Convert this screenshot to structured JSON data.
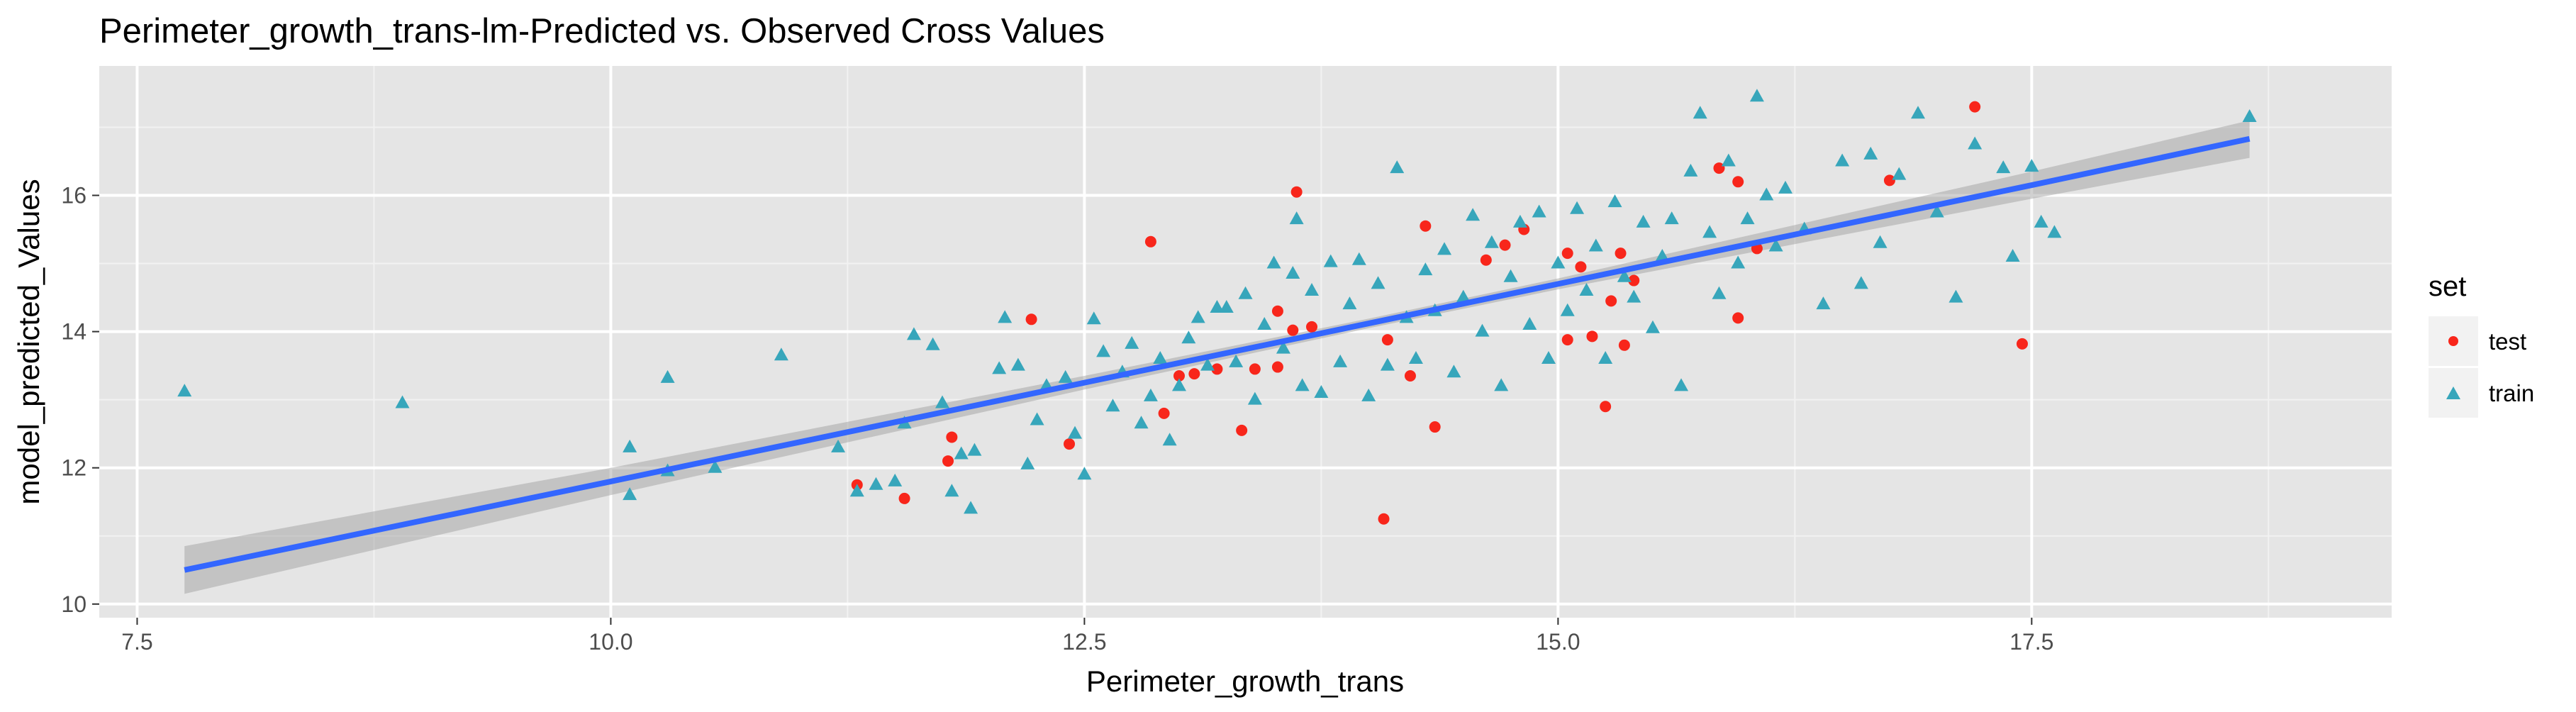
{
  "chart_data": {
    "type": "scatter",
    "title": "Perimeter_growth_trans-lm-Predicted vs. Observed Cross Values",
    "xlabel": "Perimeter_growth_trans",
    "ylabel": "model_predicted_Values",
    "xlim": [
      7.3,
      19.4
    ],
    "ylim": [
      9.8,
      17.9
    ],
    "x_ticks": [
      7.5,
      10.0,
      12.5,
      15.0,
      17.5
    ],
    "x_tick_labels": [
      "7.5",
      "10.0",
      "12.5",
      "15.0",
      "17.5"
    ],
    "y_ticks": [
      10,
      12,
      14,
      16
    ],
    "y_tick_labels": [
      "10",
      "12",
      "14",
      "16"
    ],
    "grid": true,
    "background": "#e5e5e5",
    "legend": {
      "title": "set",
      "position": "right"
    },
    "fit": {
      "method": "lm",
      "color": "#3366ff",
      "band_color": "#999999",
      "points": [
        {
          "x": 7.75,
          "y": 10.5,
          "lower": 10.15,
          "upper": 10.85
        },
        {
          "x": 10.0,
          "y": 11.8,
          "lower": 11.6,
          "upper": 12.0
        },
        {
          "x": 12.5,
          "y": 13.25,
          "lower": 13.15,
          "upper": 13.35
        },
        {
          "x": 14.0,
          "y": 14.12,
          "lower": 14.05,
          "upper": 14.19
        },
        {
          "x": 15.0,
          "y": 14.7,
          "lower": 14.62,
          "upper": 14.78
        },
        {
          "x": 17.5,
          "y": 16.15,
          "lower": 15.95,
          "upper": 16.35
        },
        {
          "x": 18.65,
          "y": 16.83,
          "lower": 16.55,
          "upper": 17.1
        }
      ]
    },
    "series": [
      {
        "name": "test",
        "shape": "circle",
        "color": "#f8261b",
        "points": [
          {
            "x": 11.3,
            "y": 11.75
          },
          {
            "x": 11.55,
            "y": 11.55
          },
          {
            "x": 11.78,
            "y": 12.1
          },
          {
            "x": 11.8,
            "y": 12.45
          },
          {
            "x": 12.22,
            "y": 14.18
          },
          {
            "x": 12.42,
            "y": 12.35
          },
          {
            "x": 12.85,
            "y": 15.32
          },
          {
            "x": 12.92,
            "y": 12.8
          },
          {
            "x": 13.0,
            "y": 13.35
          },
          {
            "x": 13.08,
            "y": 13.38
          },
          {
            "x": 13.2,
            "y": 13.45
          },
          {
            "x": 13.33,
            "y": 12.55
          },
          {
            "x": 13.4,
            "y": 13.45
          },
          {
            "x": 13.52,
            "y": 14.3
          },
          {
            "x": 13.52,
            "y": 13.48
          },
          {
            "x": 13.6,
            "y": 14.02
          },
          {
            "x": 13.62,
            "y": 16.05
          },
          {
            "x": 13.7,
            "y": 14.07
          },
          {
            "x": 14.1,
            "y": 13.88
          },
          {
            "x": 14.08,
            "y": 11.25
          },
          {
            "x": 14.22,
            "y": 13.35
          },
          {
            "x": 14.3,
            "y": 15.55
          },
          {
            "x": 14.35,
            "y": 12.6
          },
          {
            "x": 14.62,
            "y": 15.05
          },
          {
            "x": 14.72,
            "y": 15.27
          },
          {
            "x": 14.82,
            "y": 15.5
          },
          {
            "x": 15.05,
            "y": 13.88
          },
          {
            "x": 15.05,
            "y": 15.15
          },
          {
            "x": 15.12,
            "y": 14.95
          },
          {
            "x": 15.18,
            "y": 13.93
          },
          {
            "x": 15.25,
            "y": 12.9
          },
          {
            "x": 15.28,
            "y": 14.45
          },
          {
            "x": 15.33,
            "y": 15.15
          },
          {
            "x": 15.35,
            "y": 13.8
          },
          {
            "x": 15.4,
            "y": 14.75
          },
          {
            "x": 15.85,
            "y": 16.4
          },
          {
            "x": 15.95,
            "y": 16.2
          },
          {
            "x": 15.95,
            "y": 14.2
          },
          {
            "x": 16.05,
            "y": 15.22
          },
          {
            "x": 16.75,
            "y": 16.22
          },
          {
            "x": 17.2,
            "y": 17.3
          },
          {
            "x": 17.45,
            "y": 13.82
          }
        ]
      },
      {
        "name": "train",
        "shape": "triangle",
        "color": "#37a6bb",
        "points": [
          {
            "x": 7.75,
            "y": 13.12
          },
          {
            "x": 8.9,
            "y": 12.95
          },
          {
            "x": 10.1,
            "y": 11.6
          },
          {
            "x": 10.1,
            "y": 12.3
          },
          {
            "x": 10.3,
            "y": 13.32
          },
          {
            "x": 10.3,
            "y": 11.95
          },
          {
            "x": 10.55,
            "y": 12.0
          },
          {
            "x": 10.9,
            "y": 13.65
          },
          {
            "x": 11.2,
            "y": 12.3
          },
          {
            "x": 11.3,
            "y": 11.65
          },
          {
            "x": 11.4,
            "y": 11.75
          },
          {
            "x": 11.5,
            "y": 11.8
          },
          {
            "x": 11.55,
            "y": 12.65
          },
          {
            "x": 11.6,
            "y": 13.95
          },
          {
            "x": 11.7,
            "y": 13.8
          },
          {
            "x": 11.75,
            "y": 12.95
          },
          {
            "x": 11.8,
            "y": 11.65
          },
          {
            "x": 11.85,
            "y": 12.2
          },
          {
            "x": 11.9,
            "y": 11.4
          },
          {
            "x": 11.92,
            "y": 12.25
          },
          {
            "x": 12.05,
            "y": 13.45
          },
          {
            "x": 12.08,
            "y": 14.2
          },
          {
            "x": 12.15,
            "y": 13.5
          },
          {
            "x": 12.2,
            "y": 12.05
          },
          {
            "x": 12.25,
            "y": 12.7
          },
          {
            "x": 12.3,
            "y": 13.2
          },
          {
            "x": 12.4,
            "y": 13.32
          },
          {
            "x": 12.45,
            "y": 12.5
          },
          {
            "x": 12.5,
            "y": 11.9
          },
          {
            "x": 12.55,
            "y": 14.18
          },
          {
            "x": 12.6,
            "y": 13.7
          },
          {
            "x": 12.65,
            "y": 12.9
          },
          {
            "x": 12.7,
            "y": 13.4
          },
          {
            "x": 12.75,
            "y": 13.82
          },
          {
            "x": 12.8,
            "y": 12.65
          },
          {
            "x": 12.85,
            "y": 13.05
          },
          {
            "x": 12.9,
            "y": 13.6
          },
          {
            "x": 12.95,
            "y": 12.4
          },
          {
            "x": 13.0,
            "y": 13.2
          },
          {
            "x": 13.05,
            "y": 13.9
          },
          {
            "x": 13.1,
            "y": 14.2
          },
          {
            "x": 13.15,
            "y": 13.5
          },
          {
            "x": 13.2,
            "y": 14.35
          },
          {
            "x": 13.25,
            "y": 14.35
          },
          {
            "x": 13.3,
            "y": 13.55
          },
          {
            "x": 13.35,
            "y": 14.55
          },
          {
            "x": 13.4,
            "y": 13.0
          },
          {
            "x": 13.45,
            "y": 14.1
          },
          {
            "x": 13.5,
            "y": 15.0
          },
          {
            "x": 13.55,
            "y": 13.75
          },
          {
            "x": 13.6,
            "y": 14.85
          },
          {
            "x": 13.62,
            "y": 15.65
          },
          {
            "x": 13.65,
            "y": 13.2
          },
          {
            "x": 13.7,
            "y": 14.6
          },
          {
            "x": 13.75,
            "y": 13.1
          },
          {
            "x": 13.8,
            "y": 15.02
          },
          {
            "x": 13.85,
            "y": 13.55
          },
          {
            "x": 13.9,
            "y": 14.4
          },
          {
            "x": 13.95,
            "y": 15.05
          },
          {
            "x": 14.0,
            "y": 13.05
          },
          {
            "x": 14.05,
            "y": 14.7
          },
          {
            "x": 14.1,
            "y": 13.5
          },
          {
            "x": 14.15,
            "y": 16.4
          },
          {
            "x": 14.2,
            "y": 14.2
          },
          {
            "x": 14.25,
            "y": 13.6
          },
          {
            "x": 14.3,
            "y": 14.9
          },
          {
            "x": 14.35,
            "y": 14.3
          },
          {
            "x": 14.4,
            "y": 15.2
          },
          {
            "x": 14.45,
            "y": 13.4
          },
          {
            "x": 14.5,
            "y": 14.5
          },
          {
            "x": 14.55,
            "y": 15.7
          },
          {
            "x": 14.6,
            "y": 14.0
          },
          {
            "x": 14.65,
            "y": 15.3
          },
          {
            "x": 14.7,
            "y": 13.2
          },
          {
            "x": 14.75,
            "y": 14.8
          },
          {
            "x": 14.8,
            "y": 15.6
          },
          {
            "x": 14.85,
            "y": 14.1
          },
          {
            "x": 14.9,
            "y": 15.75
          },
          {
            "x": 14.95,
            "y": 13.6
          },
          {
            "x": 15.0,
            "y": 15.0
          },
          {
            "x": 15.05,
            "y": 14.3
          },
          {
            "x": 15.1,
            "y": 15.8
          },
          {
            "x": 15.15,
            "y": 14.6
          },
          {
            "x": 15.2,
            "y": 15.25
          },
          {
            "x": 15.25,
            "y": 13.6
          },
          {
            "x": 15.3,
            "y": 15.9
          },
          {
            "x": 15.35,
            "y": 14.8
          },
          {
            "x": 15.4,
            "y": 14.5
          },
          {
            "x": 15.45,
            "y": 15.6
          },
          {
            "x": 15.5,
            "y": 14.05
          },
          {
            "x": 15.55,
            "y": 15.1
          },
          {
            "x": 15.6,
            "y": 15.65
          },
          {
            "x": 15.65,
            "y": 13.2
          },
          {
            "x": 15.7,
            "y": 16.35
          },
          {
            "x": 15.75,
            "y": 17.2
          },
          {
            "x": 15.8,
            "y": 15.45
          },
          {
            "x": 15.85,
            "y": 14.55
          },
          {
            "x": 15.9,
            "y": 16.5
          },
          {
            "x": 15.95,
            "y": 15.0
          },
          {
            "x": 16.0,
            "y": 15.65
          },
          {
            "x": 16.05,
            "y": 17.45
          },
          {
            "x": 16.1,
            "y": 16.0
          },
          {
            "x": 16.15,
            "y": 15.25
          },
          {
            "x": 16.2,
            "y": 16.1
          },
          {
            "x": 16.3,
            "y": 15.5
          },
          {
            "x": 16.4,
            "y": 14.4
          },
          {
            "x": 16.5,
            "y": 16.5
          },
          {
            "x": 16.6,
            "y": 14.7
          },
          {
            "x": 16.65,
            "y": 16.6
          },
          {
            "x": 16.7,
            "y": 15.3
          },
          {
            "x": 16.8,
            "y": 16.3
          },
          {
            "x": 16.9,
            "y": 17.2
          },
          {
            "x": 17.0,
            "y": 15.75
          },
          {
            "x": 17.1,
            "y": 14.5
          },
          {
            "x": 17.2,
            "y": 16.75
          },
          {
            "x": 17.35,
            "y": 16.4
          },
          {
            "x": 17.4,
            "y": 15.1
          },
          {
            "x": 17.5,
            "y": 16.42
          },
          {
            "x": 17.55,
            "y": 15.6
          },
          {
            "x": 17.62,
            "y": 15.45
          },
          {
            "x": 18.65,
            "y": 17.15
          }
        ]
      }
    ]
  }
}
